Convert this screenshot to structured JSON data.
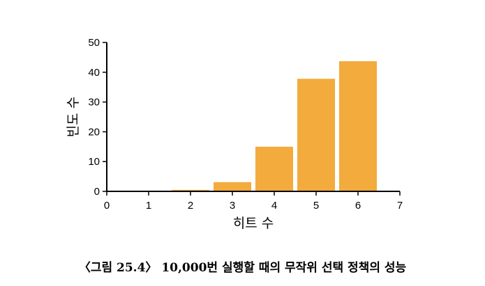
{
  "chart_data": {
    "type": "bar",
    "title": "",
    "xlabel": "히트 수",
    "ylabel": "빈도 수",
    "x": [
      1,
      2,
      3,
      4,
      5,
      6
    ],
    "values": [
      0,
      0.5,
      3.1,
      15,
      37.8,
      43.7
    ],
    "xlim": [
      0,
      7
    ],
    "ylim": [
      0,
      50
    ],
    "xticks": [
      "0",
      "1",
      "2",
      "3",
      "4",
      "5",
      "6",
      "7"
    ],
    "yticks": [
      "0",
      "10",
      "20",
      "30",
      "40",
      "50"
    ],
    "bar_color": "#f2ab3c",
    "grid": false
  },
  "caption": "〈그림 25.4〉 10,000번 실행할 때의 무작위 선택 정책의 성능"
}
